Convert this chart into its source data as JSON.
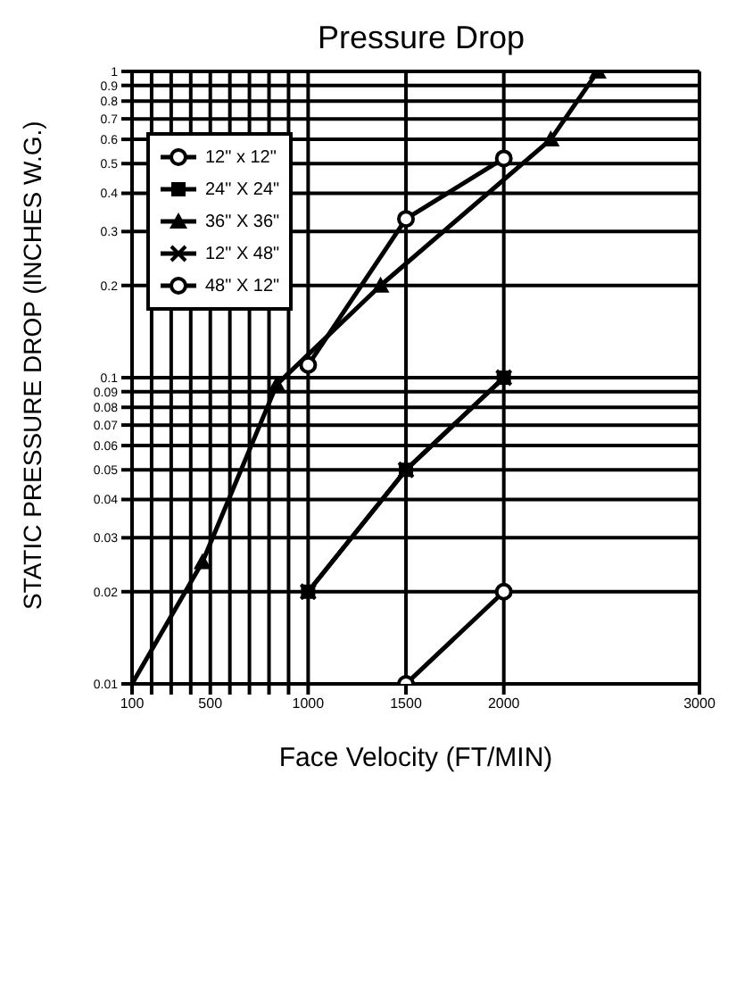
{
  "chart_data": {
    "type": "line",
    "title": "Pressure Drop",
    "xlabel": "Face Velocity (FT/MIN)",
    "ylabel": "STATIC PRESSURE DROP (INCHES W.G.)",
    "log": "y",
    "grid": true,
    "legend": "top left",
    "line_style": "solid",
    "xlim": [
      100,
      3000
    ],
    "xticks": [
      100,
      {
        "value": 200,
        "label": null
      },
      {
        "value": 300,
        "label": null
      },
      {
        "value": 400,
        "label": null
      },
      500,
      {
        "value": 600,
        "label": null
      },
      {
        "value": 700,
        "label": null
      },
      {
        "value": 800,
        "label": null
      },
      {
        "value": 900,
        "label": null
      },
      1000,
      1500,
      2000,
      3000
    ],
    "ylim": [
      0.01,
      1
    ],
    "yticks": [
      0.01,
      0.02,
      0.03,
      0.04,
      0.05,
      0.06,
      0.07,
      0.08,
      0.09,
      0.1,
      0.2,
      0.3,
      0.4,
      0.5,
      0.6,
      0.7,
      0.8,
      0.9,
      1
    ],
    "series": [
      {
        "name": "12\" x 12\"",
        "color": "#000000",
        "marker": "circle",
        "x": [
          1000,
          1500,
          2000
        ],
        "values": [
          0.11,
          0.33,
          0.52
        ]
      },
      {
        "name": "24\" X 24\"",
        "color": "#000000",
        "marker": "square",
        "x": [
          1000,
          1500,
          2000
        ],
        "values": [
          0.02,
          0.05,
          0.1
        ]
      },
      {
        "name": "36\" X 36\"",
        "color": "#000000",
        "marker": "triangle",
        "x": [
          100,
          460,
          840,
          1370,
          2240,
          2480
        ],
        "values": [
          0.01,
          0.025,
          0.095,
          0.2,
          0.6,
          1
        ]
      },
      {
        "name": "12\" X 48\"",
        "color": "#000000",
        "marker": "cross",
        "x": [
          1000,
          1500,
          2000
        ],
        "values": [
          0.02,
          0.05,
          0.1
        ]
      },
      {
        "name": "48\" X 12\"",
        "color": "#000000",
        "marker": "circle",
        "x": [
          1500,
          2000
        ],
        "values": [
          0.01,
          0.02
        ]
      }
    ]
  }
}
